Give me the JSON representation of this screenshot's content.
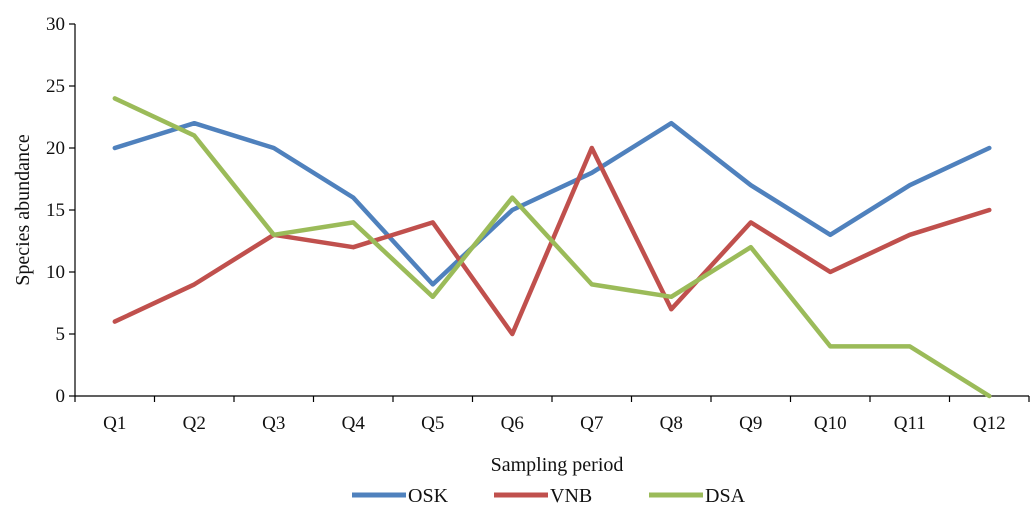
{
  "chart_data": {
    "type": "line",
    "title": "",
    "xlabel": "Sampling period",
    "ylabel": "Species abundance",
    "categories": [
      "Q1",
      "Q2",
      "Q3",
      "Q4",
      "Q5",
      "Q6",
      "Q7",
      "Q8",
      "Q9",
      "Q10",
      "Q11",
      "Q12"
    ],
    "ylim": [
      0,
      30
    ],
    "yticks": [
      0,
      5,
      10,
      15,
      20,
      25,
      30
    ],
    "grid": false,
    "legend_position": "bottom",
    "series": [
      {
        "name": "OSK",
        "color": "#4F81BD",
        "values": [
          20,
          22,
          20,
          16,
          9,
          15,
          18,
          22,
          17,
          13,
          17,
          20
        ]
      },
      {
        "name": "VNB",
        "color": "#C0504D",
        "values": [
          6,
          9,
          13,
          12,
          14,
          5,
          20,
          7,
          14,
          10,
          13,
          15
        ]
      },
      {
        "name": "DSA",
        "color": "#9BBB59",
        "values": [
          24,
          21,
          13,
          14,
          8,
          16,
          9,
          8,
          12,
          4,
          4,
          0
        ]
      }
    ]
  }
}
